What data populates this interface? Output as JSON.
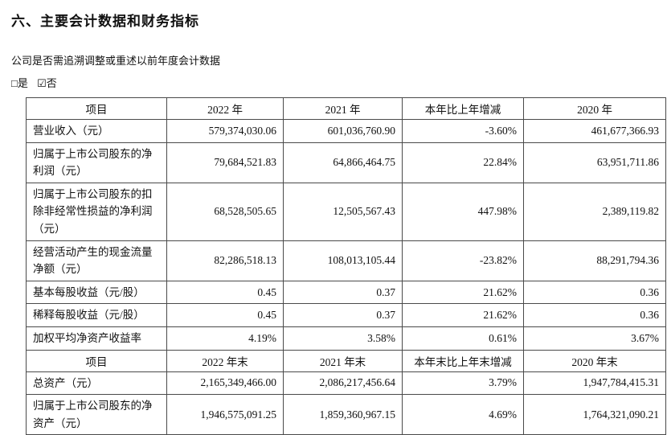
{
  "page": {
    "title": "六、主要会计数据和财务指标",
    "note": "公司是否需追溯调整或重述以前年度会计数据",
    "checkbox_yes": "□是",
    "checkbox_no": "☑否"
  },
  "table": {
    "rows": [
      {
        "type": "header",
        "cells": [
          "项目",
          "2022 年",
          "2021 年",
          "本年比上年增减",
          "2020 年"
        ]
      },
      {
        "type": "data",
        "cells": [
          "营业收入（元）",
          "579,374,030.06",
          "601,036,760.90",
          "-3.60%",
          "461,677,366.93"
        ]
      },
      {
        "type": "data",
        "cells": [
          "归属于上市公司股东的净利润（元）",
          "79,684,521.83",
          "64,866,464.75",
          "22.84%",
          "63,951,711.86"
        ]
      },
      {
        "type": "data",
        "cells": [
          "归属于上市公司股东的扣除非经常性损益的净利润（元）",
          "68,528,505.65",
          "12,505,567.43",
          "447.98%",
          "2,389,119.82"
        ]
      },
      {
        "type": "data",
        "cells": [
          "经营活动产生的现金流量净额（元）",
          "82,286,518.13",
          "108,013,105.44",
          "-23.82%",
          "88,291,794.36"
        ]
      },
      {
        "type": "data",
        "cells": [
          "基本每股收益（元/股）",
          "0.45",
          "0.37",
          "21.62%",
          "0.36"
        ]
      },
      {
        "type": "data",
        "cells": [
          "稀释每股收益（元/股）",
          "0.45",
          "0.37",
          "21.62%",
          "0.36"
        ]
      },
      {
        "type": "data",
        "cells": [
          "加权平均净资产收益率",
          "4.19%",
          "3.58%",
          "0.61%",
          "3.67%"
        ]
      },
      {
        "type": "header",
        "cells": [
          "项目",
          "2022 年末",
          "2021 年末",
          "本年末比上年末增减",
          "2020 年末"
        ]
      },
      {
        "type": "data",
        "cells": [
          "总资产（元）",
          "2,165,349,466.00",
          "2,086,217,456.64",
          "3.79%",
          "1,947,784,415.31"
        ]
      },
      {
        "type": "data",
        "cells": [
          "归属于上市公司股东的净资产（元）",
          "1,946,575,091.25",
          "1,859,360,967.15",
          "4.69%",
          "1,764,321,090.21"
        ]
      }
    ]
  }
}
